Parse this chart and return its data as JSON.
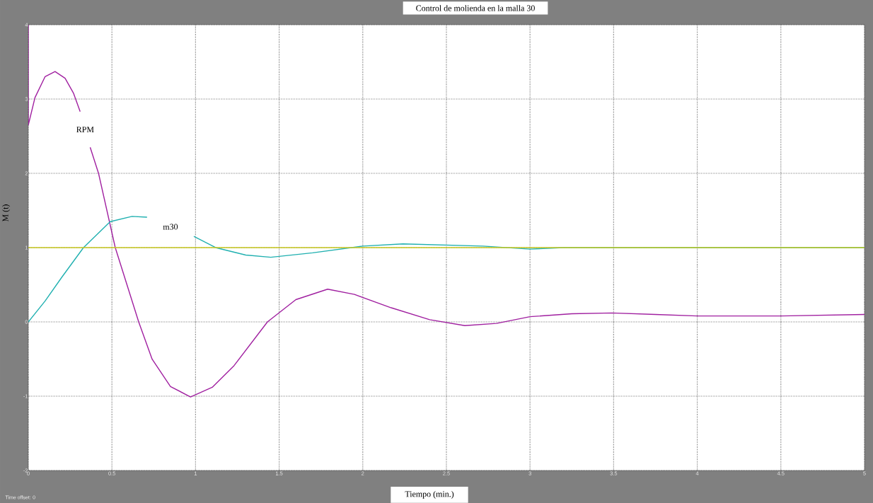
{
  "chart_data": {
    "type": "line",
    "title": "Control de molienda en la malla 30",
    "xlabel": "Tiempo (min.)",
    "ylabel": "M (t)",
    "annotations": [
      "Time offset: 0"
    ],
    "xlim": [
      0,
      5
    ],
    "ylim": [
      -2,
      4
    ],
    "xticks": [
      0,
      0.5,
      1,
      1.5,
      2,
      2.5,
      3,
      3.5,
      4,
      4.5,
      5
    ],
    "yticks": [
      -2,
      -1,
      0,
      1,
      2,
      3,
      4
    ],
    "grid": true,
    "series": [
      {
        "name": "RPM",
        "color": "#a020a0",
        "x": [
          0,
          0,
          0.04,
          0.1,
          0.16,
          0.22,
          0.27,
          0.31,
          0.34,
          0.37,
          0.42,
          0.52,
          0.66,
          0.74,
          0.85,
          0.97,
          1.1,
          1.23,
          1.43,
          1.6,
          1.79,
          1.95,
          2.17,
          2.4,
          2.61,
          2.8,
          3.0,
          3.25,
          3.49,
          3.75,
          4.0,
          4.5,
          5.0
        ],
        "values": [
          4,
          2.65,
          3.02,
          3.3,
          3.37,
          3.28,
          3.08,
          2.83,
          null,
          2.35,
          2.0,
          1.0,
          0.0,
          -0.5,
          -0.87,
          -1.01,
          -0.88,
          -0.59,
          0.0,
          0.3,
          0.44,
          0.37,
          0.19,
          0.03,
          -0.05,
          -0.02,
          0.07,
          0.11,
          0.12,
          0.1,
          0.08,
          0.08,
          0.1
        ]
      },
      {
        "name": "m30",
        "color": "#20b0b0",
        "x": [
          0,
          0.1,
          0.2,
          0.33,
          0.49,
          0.62,
          0.71,
          0.85,
          0.99,
          1.12,
          1.3,
          1.45,
          1.7,
          2.0,
          2.24,
          2.72,
          3.0,
          3.2,
          5.0
        ],
        "values": [
          0,
          0.28,
          0.6,
          1.0,
          1.35,
          1.42,
          1.41,
          null,
          1.15,
          1.0,
          0.9,
          0.87,
          0.93,
          1.02,
          1.05,
          1.02,
          0.98,
          1.0,
          1.0
        ]
      },
      {
        "color": "#c8c820",
        "x": [
          0,
          5
        ],
        "values": [
          1,
          1
        ]
      }
    ]
  }
}
